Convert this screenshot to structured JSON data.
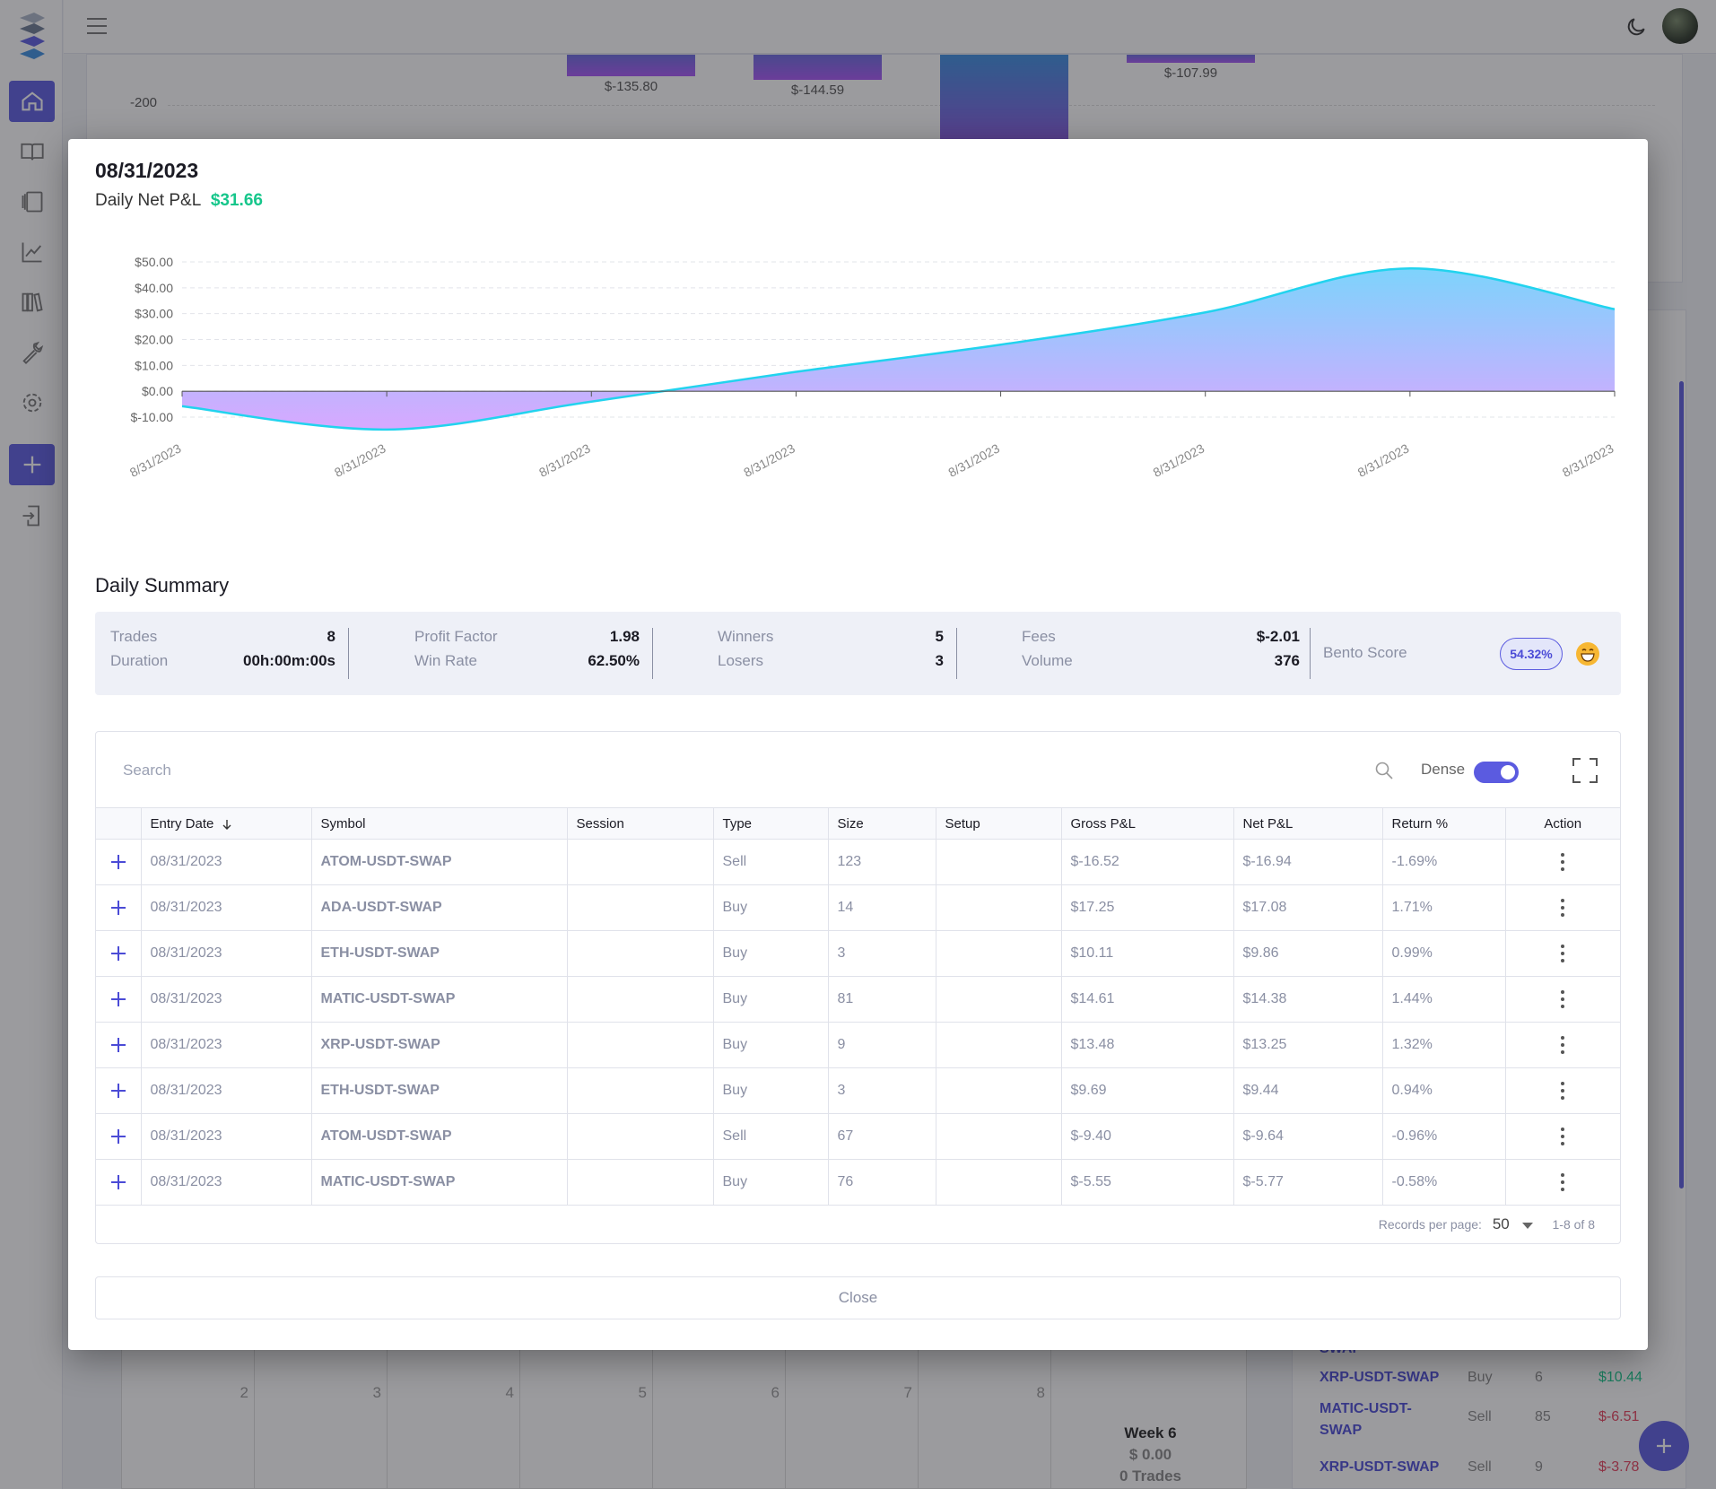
{
  "background": {
    "bars": [
      {
        "label": "$-135.80"
      },
      {
        "label": "$-144.59"
      },
      {
        "label": ""
      },
      {
        "label": "$-107.99"
      }
    ],
    "axis_label": "-200",
    "calendar_days": [
      "2",
      "3",
      "4",
      "5",
      "6",
      "7",
      "8"
    ],
    "week": {
      "title": "Week 6",
      "amount": "$ 0.00",
      "trades": "0 Trades"
    },
    "trades": [
      {
        "symbol": "SWAP",
        "type": "",
        "size": "",
        "pnl": ""
      },
      {
        "symbol": "XRP-USDT-SWAP",
        "type": "Buy",
        "size": "6",
        "pnl": "$10.44"
      },
      {
        "symbol": "MATIC-USDT-SWAP",
        "type": "Sell",
        "size": "85",
        "pnl": "$-6.51"
      },
      {
        "symbol": "XRP-USDT-SWAP",
        "type": "Sell",
        "size": "9",
        "pnl": "$-3.78"
      }
    ]
  },
  "modal": {
    "date": "08/31/2023",
    "daily_label": "Daily Net P&L",
    "daily_value": "$31.66",
    "section_title": "Daily Summary",
    "summary": {
      "trades_label": "Trades",
      "trades": "8",
      "duration_label": "Duration",
      "duration": "00h:00m:00s",
      "profit_factor_label": "Profit Factor",
      "profit_factor": "1.98",
      "win_rate_label": "Win Rate",
      "win_rate": "62.50%",
      "winners_label": "Winners",
      "winners": "5",
      "losers_label": "Losers",
      "losers": "3",
      "fees_label": "Fees",
      "fees": "$-2.01",
      "volume_label": "Volume",
      "volume": "376",
      "score_label": "Bento Score",
      "score": "54.32%"
    },
    "table": {
      "search_placeholder": "Search",
      "dense_label": "Dense",
      "headers": {
        "entry_date": "Entry Date",
        "symbol": "Symbol",
        "session": "Session",
        "type": "Type",
        "size": "Size",
        "setup": "Setup",
        "gross": "Gross P&L",
        "net": "Net P&L",
        "ret": "Return %",
        "action": "Action"
      },
      "rows": [
        {
          "date": "08/31/2023",
          "symbol": "ATOM-USDT-SWAP",
          "session": "",
          "type": "Sell",
          "size": "123",
          "setup": "",
          "gross": "$-16.52",
          "net": "$-16.94",
          "ret": "-1.69%",
          "sign": "neg"
        },
        {
          "date": "08/31/2023",
          "symbol": "ADA-USDT-SWAP",
          "session": "",
          "type": "Buy",
          "size": "14",
          "setup": "",
          "gross": "$17.25",
          "net": "$17.08",
          "ret": "1.71%",
          "sign": "pos"
        },
        {
          "date": "08/31/2023",
          "symbol": "ETH-USDT-SWAP",
          "session": "",
          "type": "Buy",
          "size": "3",
          "setup": "",
          "gross": "$10.11",
          "net": "$9.86",
          "ret": "0.99%",
          "sign": "pos"
        },
        {
          "date": "08/31/2023",
          "symbol": "MATIC-USDT-SWAP",
          "session": "",
          "type": "Buy",
          "size": "81",
          "setup": "",
          "gross": "$14.61",
          "net": "$14.38",
          "ret": "1.44%",
          "sign": "pos"
        },
        {
          "date": "08/31/2023",
          "symbol": "XRP-USDT-SWAP",
          "session": "",
          "type": "Buy",
          "size": "9",
          "setup": "",
          "gross": "$13.48",
          "net": "$13.25",
          "ret": "1.32%",
          "sign": "pos"
        },
        {
          "date": "08/31/2023",
          "symbol": "ETH-USDT-SWAP",
          "session": "",
          "type": "Buy",
          "size": "3",
          "setup": "",
          "gross": "$9.69",
          "net": "$9.44",
          "ret": "0.94%",
          "sign": "pos"
        },
        {
          "date": "08/31/2023",
          "symbol": "ATOM-USDT-SWAP",
          "session": "",
          "type": "Sell",
          "size": "67",
          "setup": "",
          "gross": "$-9.40",
          "net": "$-9.64",
          "ret": "-0.96%",
          "sign": "neg"
        },
        {
          "date": "08/31/2023",
          "symbol": "MATIC-USDT-SWAP",
          "session": "",
          "type": "Buy",
          "size": "76",
          "setup": "",
          "gross": "$-5.55",
          "net": "$-5.77",
          "ret": "-0.58%",
          "sign": "neg"
        }
      ],
      "records_label": "Records per page:",
      "records_per_page": "50",
      "range": "1-8 of 8"
    },
    "close_label": "Close"
  },
  "chart_data": {
    "type": "area",
    "title": "",
    "xlabel": "",
    "ylabel": "",
    "x": [
      "8/31/2023",
      "8/31/2023",
      "8/31/2023",
      "8/31/2023",
      "8/31/2023",
      "8/31/2023",
      "8/31/2023",
      "8/31/2023"
    ],
    "series": [
      {
        "values": [
          -5.8,
          -14.8,
          -4.0,
          7.5,
          18.0,
          30.5,
          47.5,
          31.7
        ]
      }
    ],
    "yticks": [
      "$50.00",
      "$40.00",
      "$30.00",
      "$20.00",
      "$10.00",
      "$0.00",
      "$-10.00"
    ],
    "ylim": [
      -10,
      50
    ],
    "grid": true,
    "colors": {
      "line": "#22d3ee",
      "fill_top": "#7dd3fc",
      "fill_bottom": "#d8a8ff"
    }
  },
  "icons": {
    "sidebar": [
      "home-icon",
      "book-icon",
      "journal-icon",
      "chart-icon",
      "library-icon",
      "wrench-icon",
      "gear-icon",
      "plus-icon",
      "import-icon"
    ],
    "top": [
      "hamburger-icon",
      "moon-icon"
    ]
  },
  "colors": {
    "accent": "#5b5be0",
    "positive": "#16c68b",
    "negative": "#e53e5a"
  }
}
